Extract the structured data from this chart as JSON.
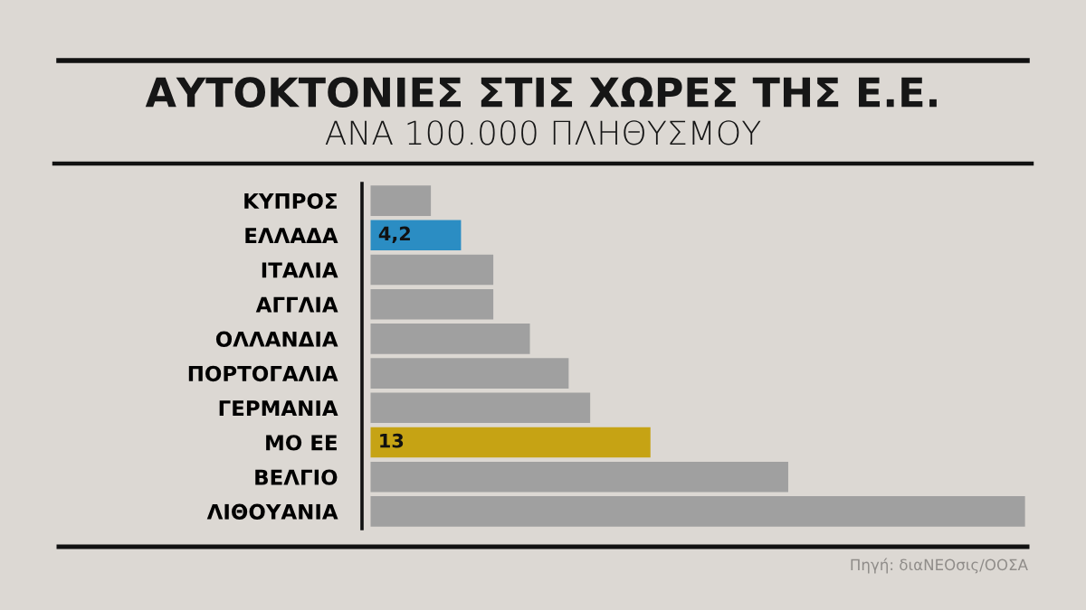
{
  "chart_data": {
    "type": "bar",
    "orientation": "horizontal",
    "title": "ΑΥΤΟΚΤΟΝΙΕΣ ΣΤΙΣ ΧΩΡΕΣ ΤΗΣ Ε.Ε.",
    "subtitle": "ΑΝΑ 100.000 ΠΛΗΘΥΣΜΟΥ",
    "categories": [
      "ΚΥΠΡΟΣ",
      "ΕΛΛΑΔΑ",
      "ΙΤΑΛΙΑ",
      "ΑΓΓΛΙΑ",
      "ΟΛΛΑΝΔΙΑ",
      "ΠΟΡΤΟΓΑΛΙΑ",
      "ΓΕΡΜΑΝΙΑ",
      "ΜΟ ΕΕ",
      "ΒΕΛΓΙΟ",
      "ΛΙΘΟΥΑΝΙΑ"
    ],
    "values": [
      2.8,
      4.2,
      5.7,
      5.7,
      7.4,
      9.2,
      10.2,
      13,
      19.4,
      30.4
    ],
    "colors": [
      "#a0a0a0",
      "#2b8dc3",
      "#a0a0a0",
      "#a0a0a0",
      "#a0a0a0",
      "#a0a0a0",
      "#a0a0a0",
      "#c6a314",
      "#a0a0a0",
      "#a0a0a0"
    ],
    "value_labels": [
      null,
      "4,2",
      null,
      null,
      null,
      null,
      null,
      "13",
      null,
      null
    ],
    "xlim": [
      -0.4,
      30.5
    ],
    "tick_labels": "y",
    "annotations": [
      "Πηγή: διαΝΕΟσις/ΟΟΣΑ"
    ]
  }
}
